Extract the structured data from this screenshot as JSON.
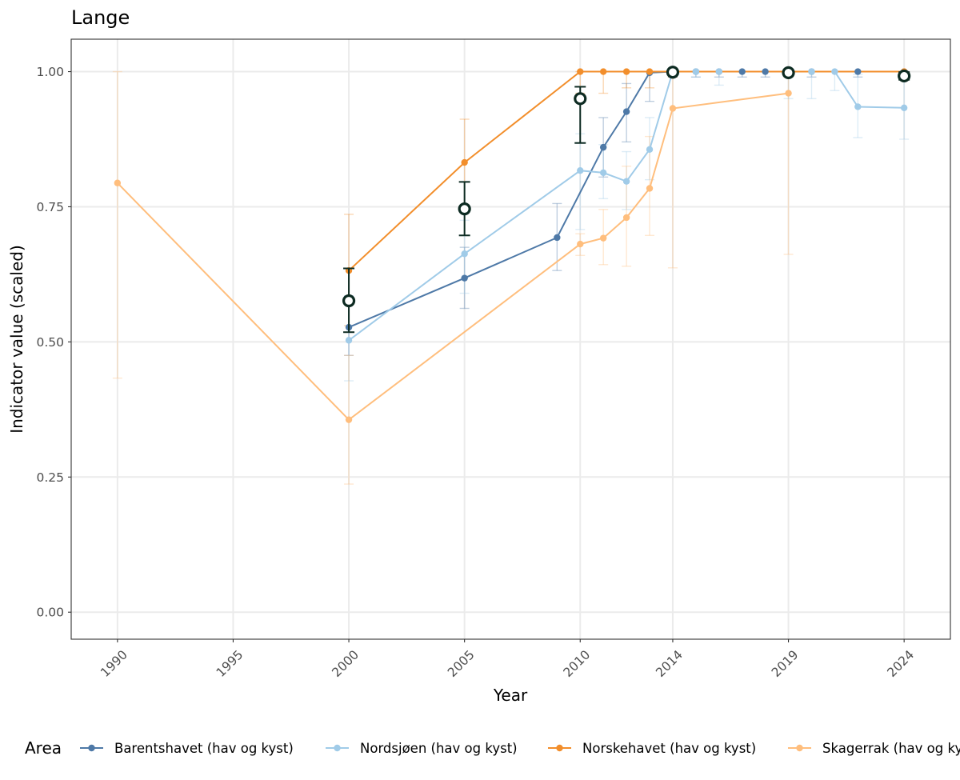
{
  "chart_data": {
    "type": "line",
    "title": "Lange",
    "xlabel": "Year",
    "ylabel": "Indicator value (scaled)",
    "x_ticks": [
      1990,
      1995,
      2000,
      2005,
      2010,
      2014,
      2019,
      2024
    ],
    "x_tick_labels": [
      "1990",
      "1995",
      "2000",
      "2005",
      "2010",
      "2014",
      "2019",
      "2024"
    ],
    "xlim": [
      1988,
      2026
    ],
    "y_ticks": [
      0,
      0.25,
      0.5,
      0.75,
      1
    ],
    "y_tick_labels": [
      "0.00",
      "0.25",
      "0.50",
      "0.75",
      "1.00"
    ],
    "ylim": [
      -0.05,
      1.06
    ],
    "grid": true,
    "legend": {
      "title": "Area",
      "position": "bottom"
    },
    "series": [
      {
        "name": "Barentshavet (hav og kyst)",
        "color": "#4e79a7",
        "points": [
          {
            "x": 2000,
            "y": 0.527,
            "lo": 0.475,
            "hi": 0.585
          },
          {
            "x": 2005,
            "y": 0.618,
            "lo": 0.562,
            "hi": 0.675
          },
          {
            "x": 2009,
            "y": 0.693,
            "lo": 0.632,
            "hi": 0.756
          },
          {
            "x": 2011,
            "y": 0.86,
            "lo": 0.805,
            "hi": 0.915
          },
          {
            "x": 2012,
            "y": 0.926,
            "lo": 0.87,
            "hi": 0.978
          },
          {
            "x": 2013,
            "y": 0.998,
            "lo": 0.945,
            "hi": 1.0
          },
          {
            "x": 2014,
            "y": 1.0,
            "lo": 0.99,
            "hi": 1.0
          },
          {
            "x": 2015,
            "y": 1.0,
            "lo": 0.99,
            "hi": 1.0
          },
          {
            "x": 2016,
            "y": 1.0,
            "lo": 0.99,
            "hi": 1.0
          },
          {
            "x": 2017,
            "y": 1.0,
            "lo": 0.99,
            "hi": 1.0
          },
          {
            "x": 2018,
            "y": 1.0,
            "lo": 0.99,
            "hi": 1.0
          },
          {
            "x": 2019,
            "y": 1.0,
            "lo": 0.99,
            "hi": 1.0
          },
          {
            "x": 2020,
            "y": 1.0,
            "lo": 0.99,
            "hi": 1.0
          },
          {
            "x": 2022,
            "y": 1.0,
            "lo": 0.99,
            "hi": 1.0
          },
          {
            "x": 2024,
            "y": 1.0,
            "lo": 0.99,
            "hi": 1.0
          }
        ]
      },
      {
        "name": "Nordsjøen (hav og kyst)",
        "color": "#a0cbe8",
        "points": [
          {
            "x": 2000,
            "y": 0.503,
            "lo": 0.428,
            "hi": 0.585
          },
          {
            "x": 2005,
            "y": 0.663,
            "lo": 0.59,
            "hi": 0.725
          },
          {
            "x": 2010,
            "y": 0.817,
            "lo": 0.708,
            "hi": 0.885
          },
          {
            "x": 2011,
            "y": 0.813,
            "lo": 0.765,
            "hi": 0.865
          },
          {
            "x": 2012,
            "y": 0.797,
            "lo": 0.745,
            "hi": 0.852
          },
          {
            "x": 2013,
            "y": 0.856,
            "lo": 0.8,
            "hi": 0.915
          },
          {
            "x": 2014,
            "y": 1.0,
            "lo": 0.99,
            "hi": 1.0
          },
          {
            "x": 2015,
            "y": 1.0,
            "lo": 0.99,
            "hi": 1.0
          },
          {
            "x": 2016,
            "y": 1.0,
            "lo": 0.975,
            "hi": 1.0
          },
          {
            "x": 2019,
            "y": 1.0,
            "lo": 0.95,
            "hi": 1.0
          },
          {
            "x": 2020,
            "y": 1.0,
            "lo": 0.95,
            "hi": 1.0
          },
          {
            "x": 2021,
            "y": 1.0,
            "lo": 0.965,
            "hi": 1.0
          },
          {
            "x": 2022,
            "y": 0.935,
            "lo": 0.878,
            "hi": 0.995
          },
          {
            "x": 2024,
            "y": 0.933,
            "lo": 0.875,
            "hi": 0.99
          }
        ]
      },
      {
        "name": "Norskehavet (hav og kyst)",
        "color": "#f28e2b",
        "points": [
          {
            "x": 2000,
            "y": 0.632,
            "lo": 0.53,
            "hi": 0.736
          },
          {
            "x": 2005,
            "y": 0.832,
            "lo": 0.752,
            "hi": 0.912
          },
          {
            "x": 2010,
            "y": 1.0,
            "lo": 0.96,
            "hi": 1.0
          },
          {
            "x": 2011,
            "y": 1.0,
            "lo": 0.96,
            "hi": 1.0
          },
          {
            "x": 2012,
            "y": 1.0,
            "lo": 0.97,
            "hi": 1.0
          },
          {
            "x": 2013,
            "y": 1.0,
            "lo": 0.97,
            "hi": 1.0
          },
          {
            "x": 2014,
            "y": 1.0,
            "lo": 0.99,
            "hi": 1.0
          },
          {
            "x": 2019,
            "y": 1.0,
            "lo": 0.99,
            "hi": 1.0
          },
          {
            "x": 2024,
            "y": 1.0,
            "lo": 0.99,
            "hi": 1.0
          }
        ]
      },
      {
        "name": "Skagerrak (hav og kyst)",
        "color": "#ffbe7d",
        "points": [
          {
            "x": 1990,
            "y": 0.794,
            "lo": 0.433,
            "hi": 1.0
          },
          {
            "x": 2000,
            "y": 0.356,
            "lo": 0.237,
            "hi": 0.475
          },
          {
            "x": 2010,
            "y": 0.681,
            "lo": 0.66,
            "hi": 0.7
          },
          {
            "x": 2011,
            "y": 0.692,
            "lo": 0.643,
            "hi": 0.745
          },
          {
            "x": 2012,
            "y": 0.73,
            "lo": 0.64,
            "hi": 0.825
          },
          {
            "x": 2013,
            "y": 0.784,
            "lo": 0.697,
            "hi": 0.88
          },
          {
            "x": 2014,
            "y": 0.932,
            "lo": 0.637,
            "hi": 1.0
          },
          {
            "x": 2019,
            "y": 0.96,
            "lo": 0.662,
            "hi": 1.0
          }
        ]
      }
    ],
    "overall": {
      "color": "#0d2b22",
      "points": [
        {
          "x": 2000,
          "y": 0.576,
          "lo": 0.518,
          "hi": 0.636
        },
        {
          "x": 2005,
          "y": 0.746,
          "lo": 0.697,
          "hi": 0.796
        },
        {
          "x": 2010,
          "y": 0.95,
          "lo": 0.868,
          "hi": 0.972
        },
        {
          "x": 2014,
          "y": 0.999,
          "lo": 0.995,
          "hi": 1.0
        },
        {
          "x": 2019,
          "y": 0.998,
          "lo": 0.993,
          "hi": 1.0
        },
        {
          "x": 2024,
          "y": 0.992,
          "lo": 0.985,
          "hi": 0.999
        }
      ]
    }
  }
}
